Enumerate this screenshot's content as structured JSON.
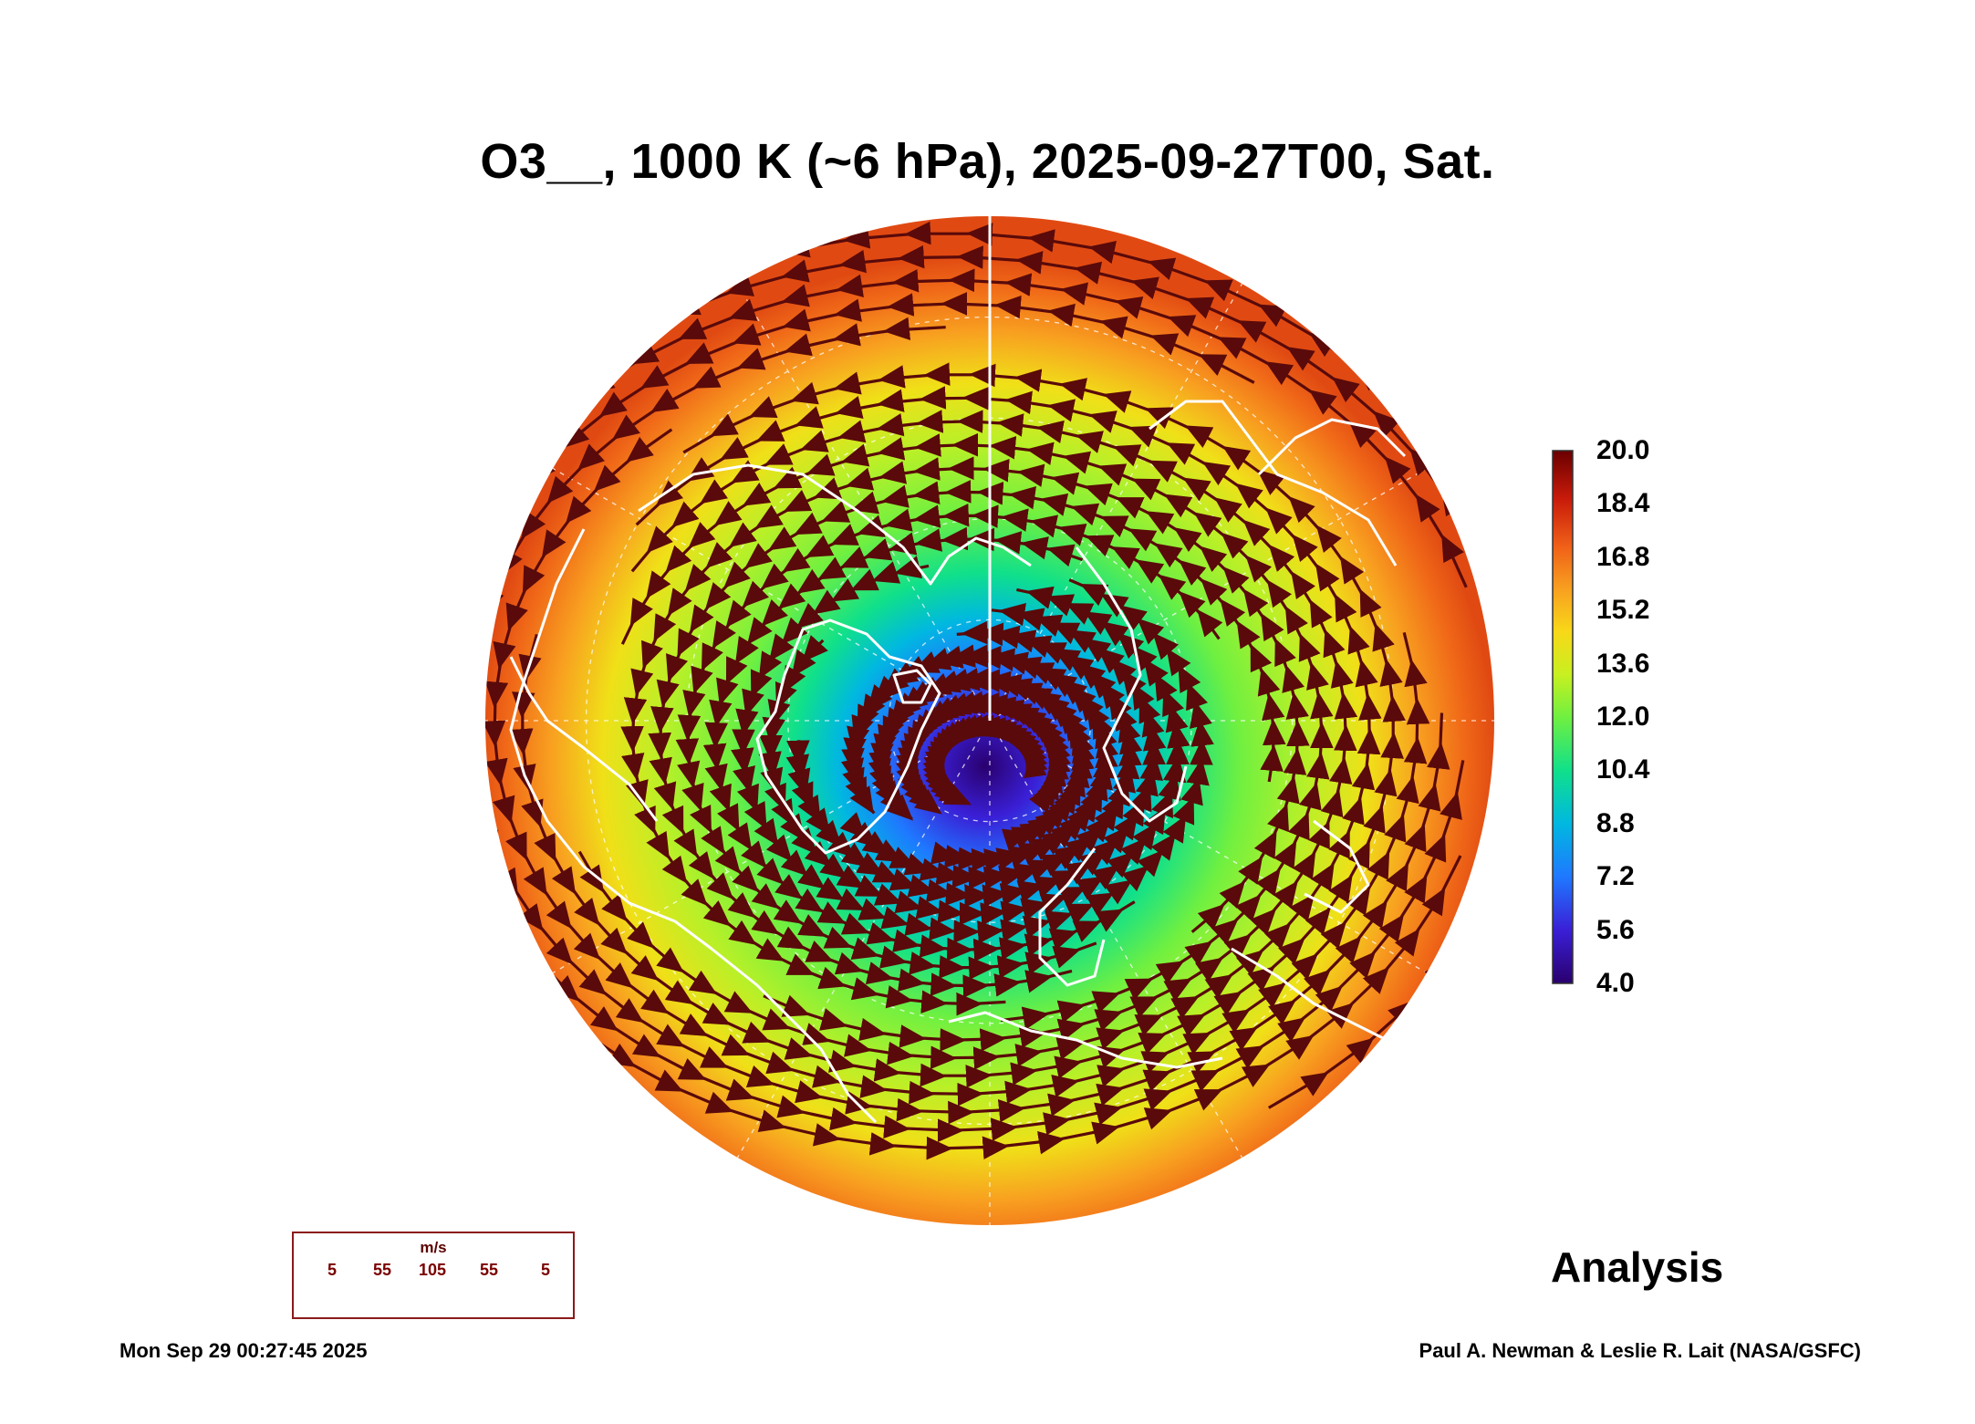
{
  "title": "O3__, 1000 K (~6 hPa), 2025-09-27T00, Sat.",
  "colorbar": {
    "min": 4.0,
    "max": 20.0,
    "ticks": [
      "20.0",
      "18.4",
      "16.8",
      "15.2",
      "13.6",
      "12.0",
      "10.4",
      "8.8",
      "7.2",
      "5.6",
      "4.0"
    ],
    "colors": [
      "#2a006e",
      "#3a1fd6",
      "#1f78ff",
      "#00b8e0",
      "#10e08a",
      "#70f040",
      "#c8f020",
      "#f8d818",
      "#f8a020",
      "#f06018",
      "#c81a0a",
      "#6a0000"
    ]
  },
  "field": {
    "name": "O3__",
    "level": "1000 K (~6 hPa)",
    "low_center_value": 4.0,
    "rim_value": 17.0
  },
  "wind_legend": {
    "unit": "m/s",
    "values": [
      "5",
      "55",
      "105",
      "55",
      "5"
    ],
    "color": "#6a0000"
  },
  "analysis_label": "Analysis",
  "timestamp": "Mon Sep 29 00:27:45 2025",
  "credit": "Paul A. Newman & Leslie R. Lait (NASA/GSFC)",
  "colors": {
    "streamline": "#5a0a0a",
    "coastline": "#ffffff"
  }
}
